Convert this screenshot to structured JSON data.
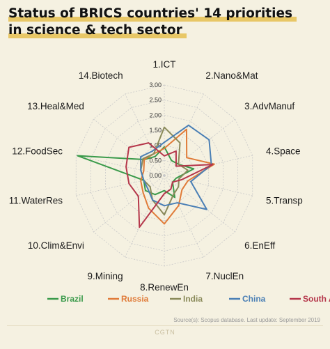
{
  "title_line1": "Status of BRICS countries' 14 priorities",
  "title_line2": "in science & tech sector",
  "source": "Source(s): Scopus database. Last update: September 2019",
  "brand": "CGTN",
  "colors": {
    "highlight": "#e8c766",
    "grid": "#c9c9c9",
    "background": "#f5f1e1"
  },
  "chart_data": {
    "type": "radar",
    "categories": [
      "1.ICT",
      "2.Nano&Mat",
      "3.AdvManuf",
      "4.Space",
      "5.Transp",
      "6.EnEff",
      "7.NuclEn",
      "8.RenewEn",
      "9.Mining",
      "10.Clim&Envi",
      "11.WaterRes",
      "12.FoodSec",
      "13.Heal&Med",
      "14.Biotech"
    ],
    "rlim": [
      0,
      3
    ],
    "ticks": [
      "0.00",
      "0.50",
      "1.00",
      "1.50",
      "2.00",
      "2.50",
      "3.00"
    ],
    "tick_values": [
      0,
      0.5,
      1,
      1.5,
      2,
      2.5,
      3
    ],
    "grid": true,
    "legend_position": "bottom",
    "series": [
      {
        "name": "Brazil",
        "color": "#3a9a4a",
        "values": [
          0.95,
          0.55,
          0.6,
          1.0,
          0.4,
          0.35,
          0.8,
          0.5,
          0.7,
          0.8,
          0.7,
          2.95,
          0.85,
          0.7
        ]
      },
      {
        "name": "Russia",
        "color": "#e07b39",
        "values": [
          0.9,
          1.7,
          0.95,
          1.7,
          0.8,
          0.75,
          1.1,
          1.6,
          1.2,
          0.9,
          0.8,
          0.7,
          0.85,
          0.8
        ]
      },
      {
        "name": "India",
        "color": "#8a8a5a",
        "values": [
          1.6,
          1.2,
          0.6,
          0.8,
          0.5,
          0.6,
          0.7,
          1.3,
          0.9,
          0.6,
          0.7,
          0.8,
          0.9,
          0.8
        ]
      },
      {
        "name": "China",
        "color": "#4a7fb5",
        "values": [
          1.1,
          1.85,
          1.9,
          1.6,
          0.9,
          1.8,
          1.0,
          1.0,
          0.9,
          0.7,
          0.7,
          0.8,
          1.0,
          0.9
        ]
      },
      {
        "name": "South Africa",
        "color": "#b5364a",
        "values": [
          0.65,
          0.9,
          0.5,
          1.65,
          0.6,
          0.35,
          0.5,
          0.6,
          1.9,
          1.1,
          1.2,
          1.3,
          1.5,
          1.2
        ]
      }
    ]
  }
}
